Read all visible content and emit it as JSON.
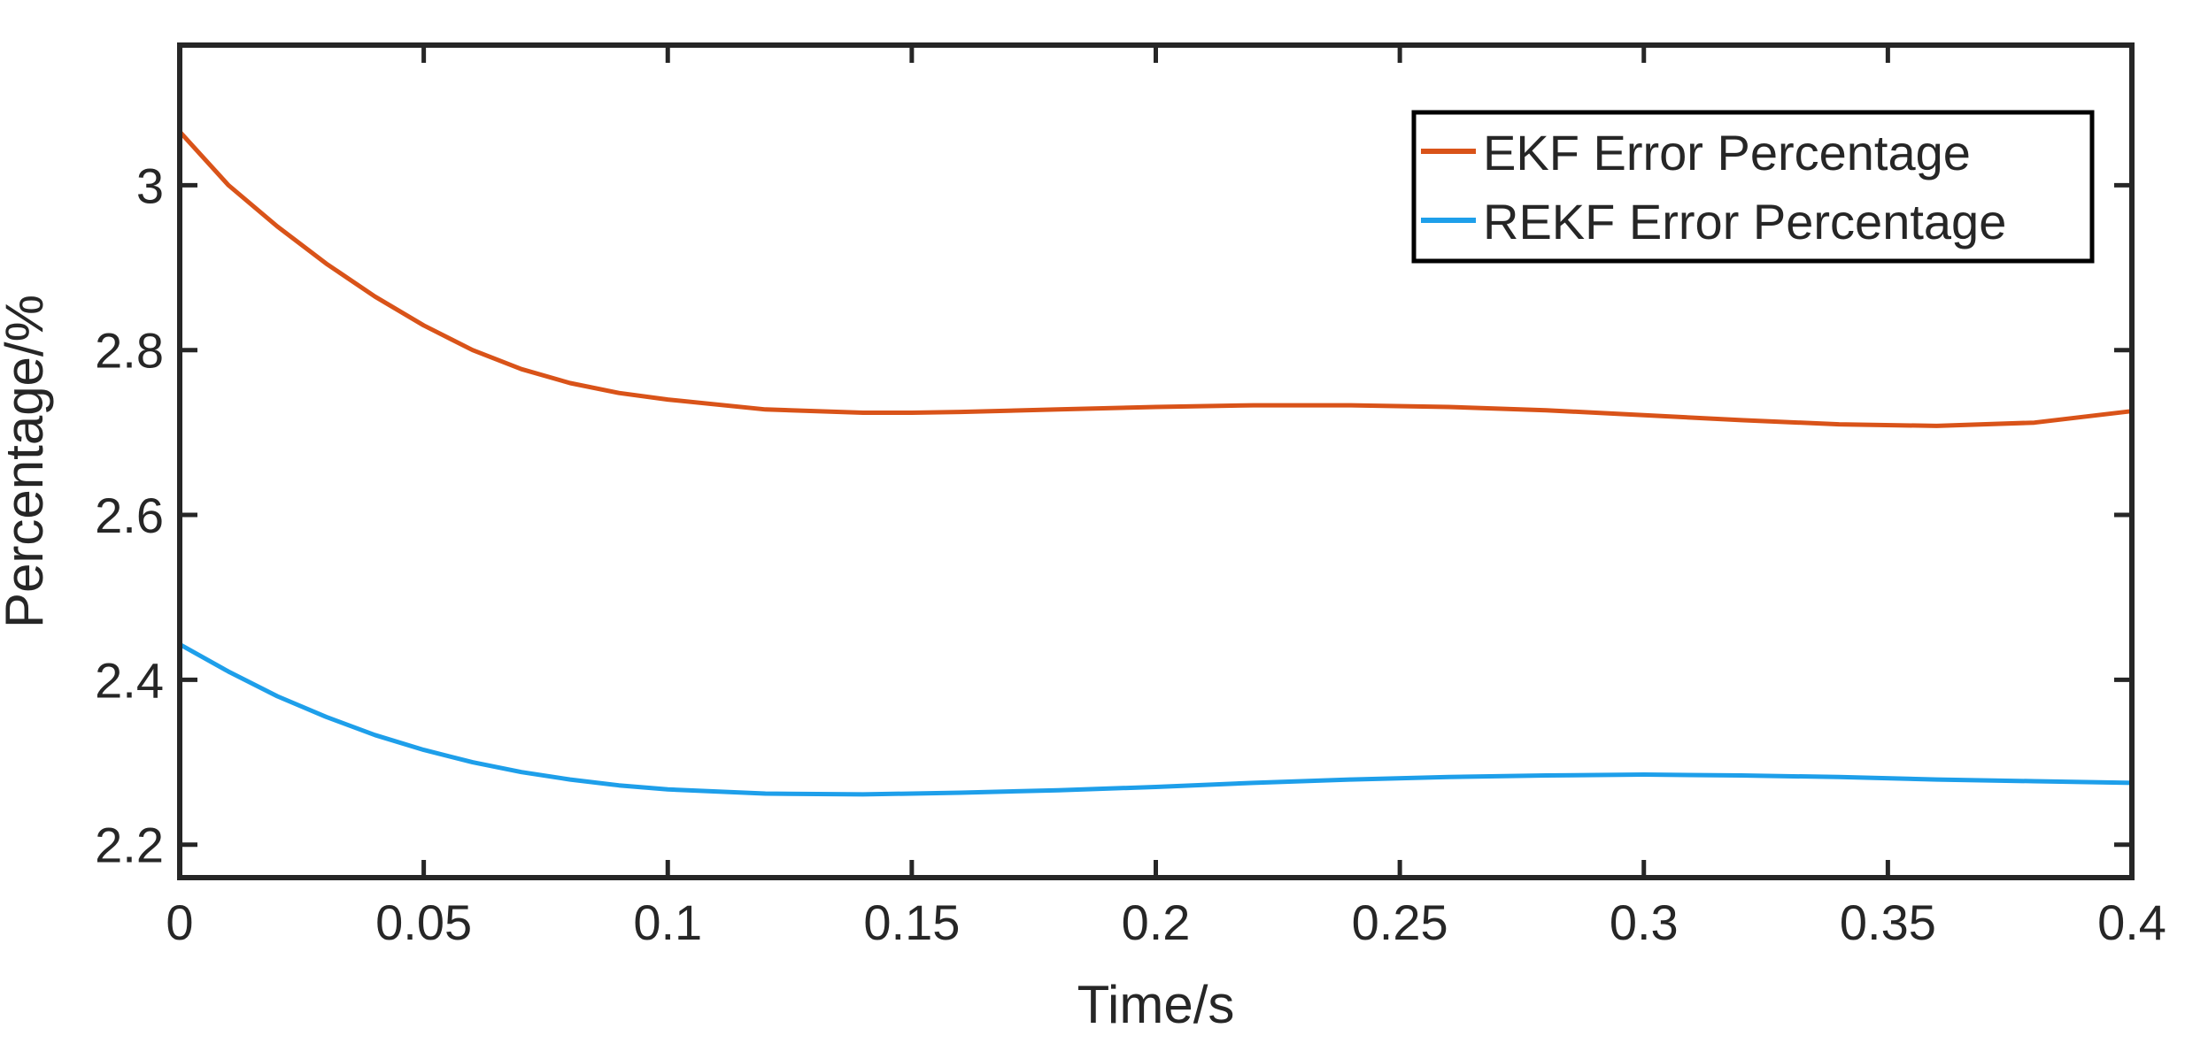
{
  "chart_data": {
    "type": "line",
    "title": "",
    "xlabel": "Time/s",
    "ylabel": "Percentage/%",
    "xlim": [
      0,
      0.4
    ],
    "ylim": [
      2.16,
      3.17
    ],
    "xticks": [
      0,
      0.05,
      0.1,
      0.15,
      0.2,
      0.25,
      0.3,
      0.35,
      0.4
    ],
    "xtick_labels": [
      "0",
      "0.05",
      "0.1",
      "0.15",
      "0.2",
      "0.25",
      "0.3",
      "0.35",
      "0.4"
    ],
    "yticks": [
      2.2,
      2.4,
      2.6,
      2.8,
      3.0
    ],
    "ytick_labels": [
      "2.2",
      "2.4",
      "2.6",
      "2.8",
      "3"
    ],
    "grid": false,
    "legend_position": "top-right",
    "series": [
      {
        "name": "EKF Error Percentage",
        "color": "#D95319",
        "x": [
          0,
          0.01,
          0.02,
          0.03,
          0.04,
          0.05,
          0.06,
          0.07,
          0.08,
          0.09,
          0.1,
          0.12,
          0.14,
          0.15,
          0.16,
          0.18,
          0.2,
          0.22,
          0.24,
          0.26,
          0.28,
          0.3,
          0.32,
          0.34,
          0.36,
          0.38,
          0.4
        ],
        "y": [
          3.065,
          3.0,
          2.95,
          2.905,
          2.865,
          2.83,
          2.8,
          2.777,
          2.76,
          2.748,
          2.74,
          2.728,
          2.724,
          2.724,
          2.725,
          2.728,
          2.731,
          2.733,
          2.733,
          2.731,
          2.727,
          2.721,
          2.715,
          2.71,
          2.708,
          2.712,
          2.726
        ]
      },
      {
        "name": "REKF Error Percentage",
        "color": "#1E9FEA",
        "x": [
          0,
          0.01,
          0.02,
          0.03,
          0.04,
          0.05,
          0.06,
          0.07,
          0.08,
          0.09,
          0.1,
          0.12,
          0.14,
          0.16,
          0.18,
          0.2,
          0.22,
          0.24,
          0.26,
          0.28,
          0.3,
          0.32,
          0.34,
          0.36,
          0.38,
          0.4
        ],
        "y": [
          2.443,
          2.41,
          2.38,
          2.355,
          2.333,
          2.315,
          2.3,
          2.288,
          2.279,
          2.272,
          2.267,
          2.262,
          2.261,
          2.263,
          2.266,
          2.27,
          2.275,
          2.279,
          2.282,
          2.284,
          2.285,
          2.284,
          2.282,
          2.279,
          2.277,
          2.275
        ]
      }
    ]
  }
}
